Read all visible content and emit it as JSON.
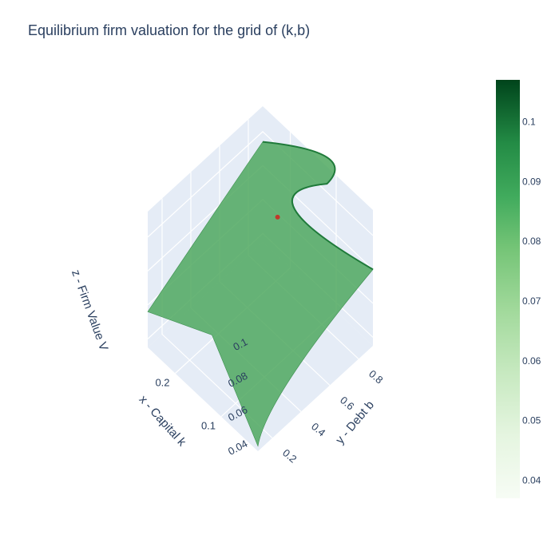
{
  "chart_data": {
    "type": "surface",
    "title": "Equilibrium firm valuation for the grid of (k,b)",
    "xlabel": "x - Capital k",
    "ylabel": "y - Debt b",
    "zlabel": "z - Firm Value V",
    "x_ticks": [
      "0.1",
      "0.2"
    ],
    "y_ticks": [
      "0.2",
      "0.4",
      "0.6",
      "0.8"
    ],
    "z_ticks": [
      "0.04",
      "0.06",
      "0.08",
      "0.1"
    ],
    "xlim": [
      0.02,
      0.26
    ],
    "ylim": [
      0.1,
      0.9
    ],
    "zlim": [
      0.035,
      0.115
    ],
    "surface_corners": [
      {
        "k": 0.02,
        "b": 0.1,
        "v": 0.038
      },
      {
        "k": 0.26,
        "b": 0.1,
        "v": 0.056
      },
      {
        "k": 0.26,
        "b": 0.9,
        "v": 0.094
      },
      {
        "k": 0.02,
        "b": 0.9,
        "v": 0.08
      }
    ],
    "peak": {
      "k": 0.12,
      "b": 0.9,
      "v": 0.105
    },
    "highlighted_point": {
      "k": 0.14,
      "b": 0.62,
      "v": 0.102,
      "color": "#c0392b"
    },
    "colorscale": "Greens",
    "colorbar_ticks": [
      "0.04",
      "0.05",
      "0.06",
      "0.07",
      "0.08",
      "0.09",
      "0.1"
    ],
    "colorbar_range": [
      0.037,
      0.107
    ],
    "colors": {
      "low": "#f7fcf5",
      "high": "#00441b",
      "scene_bg": "#e5ecf6",
      "grid": "#ffffff",
      "text": "#2a3f5f"
    }
  }
}
